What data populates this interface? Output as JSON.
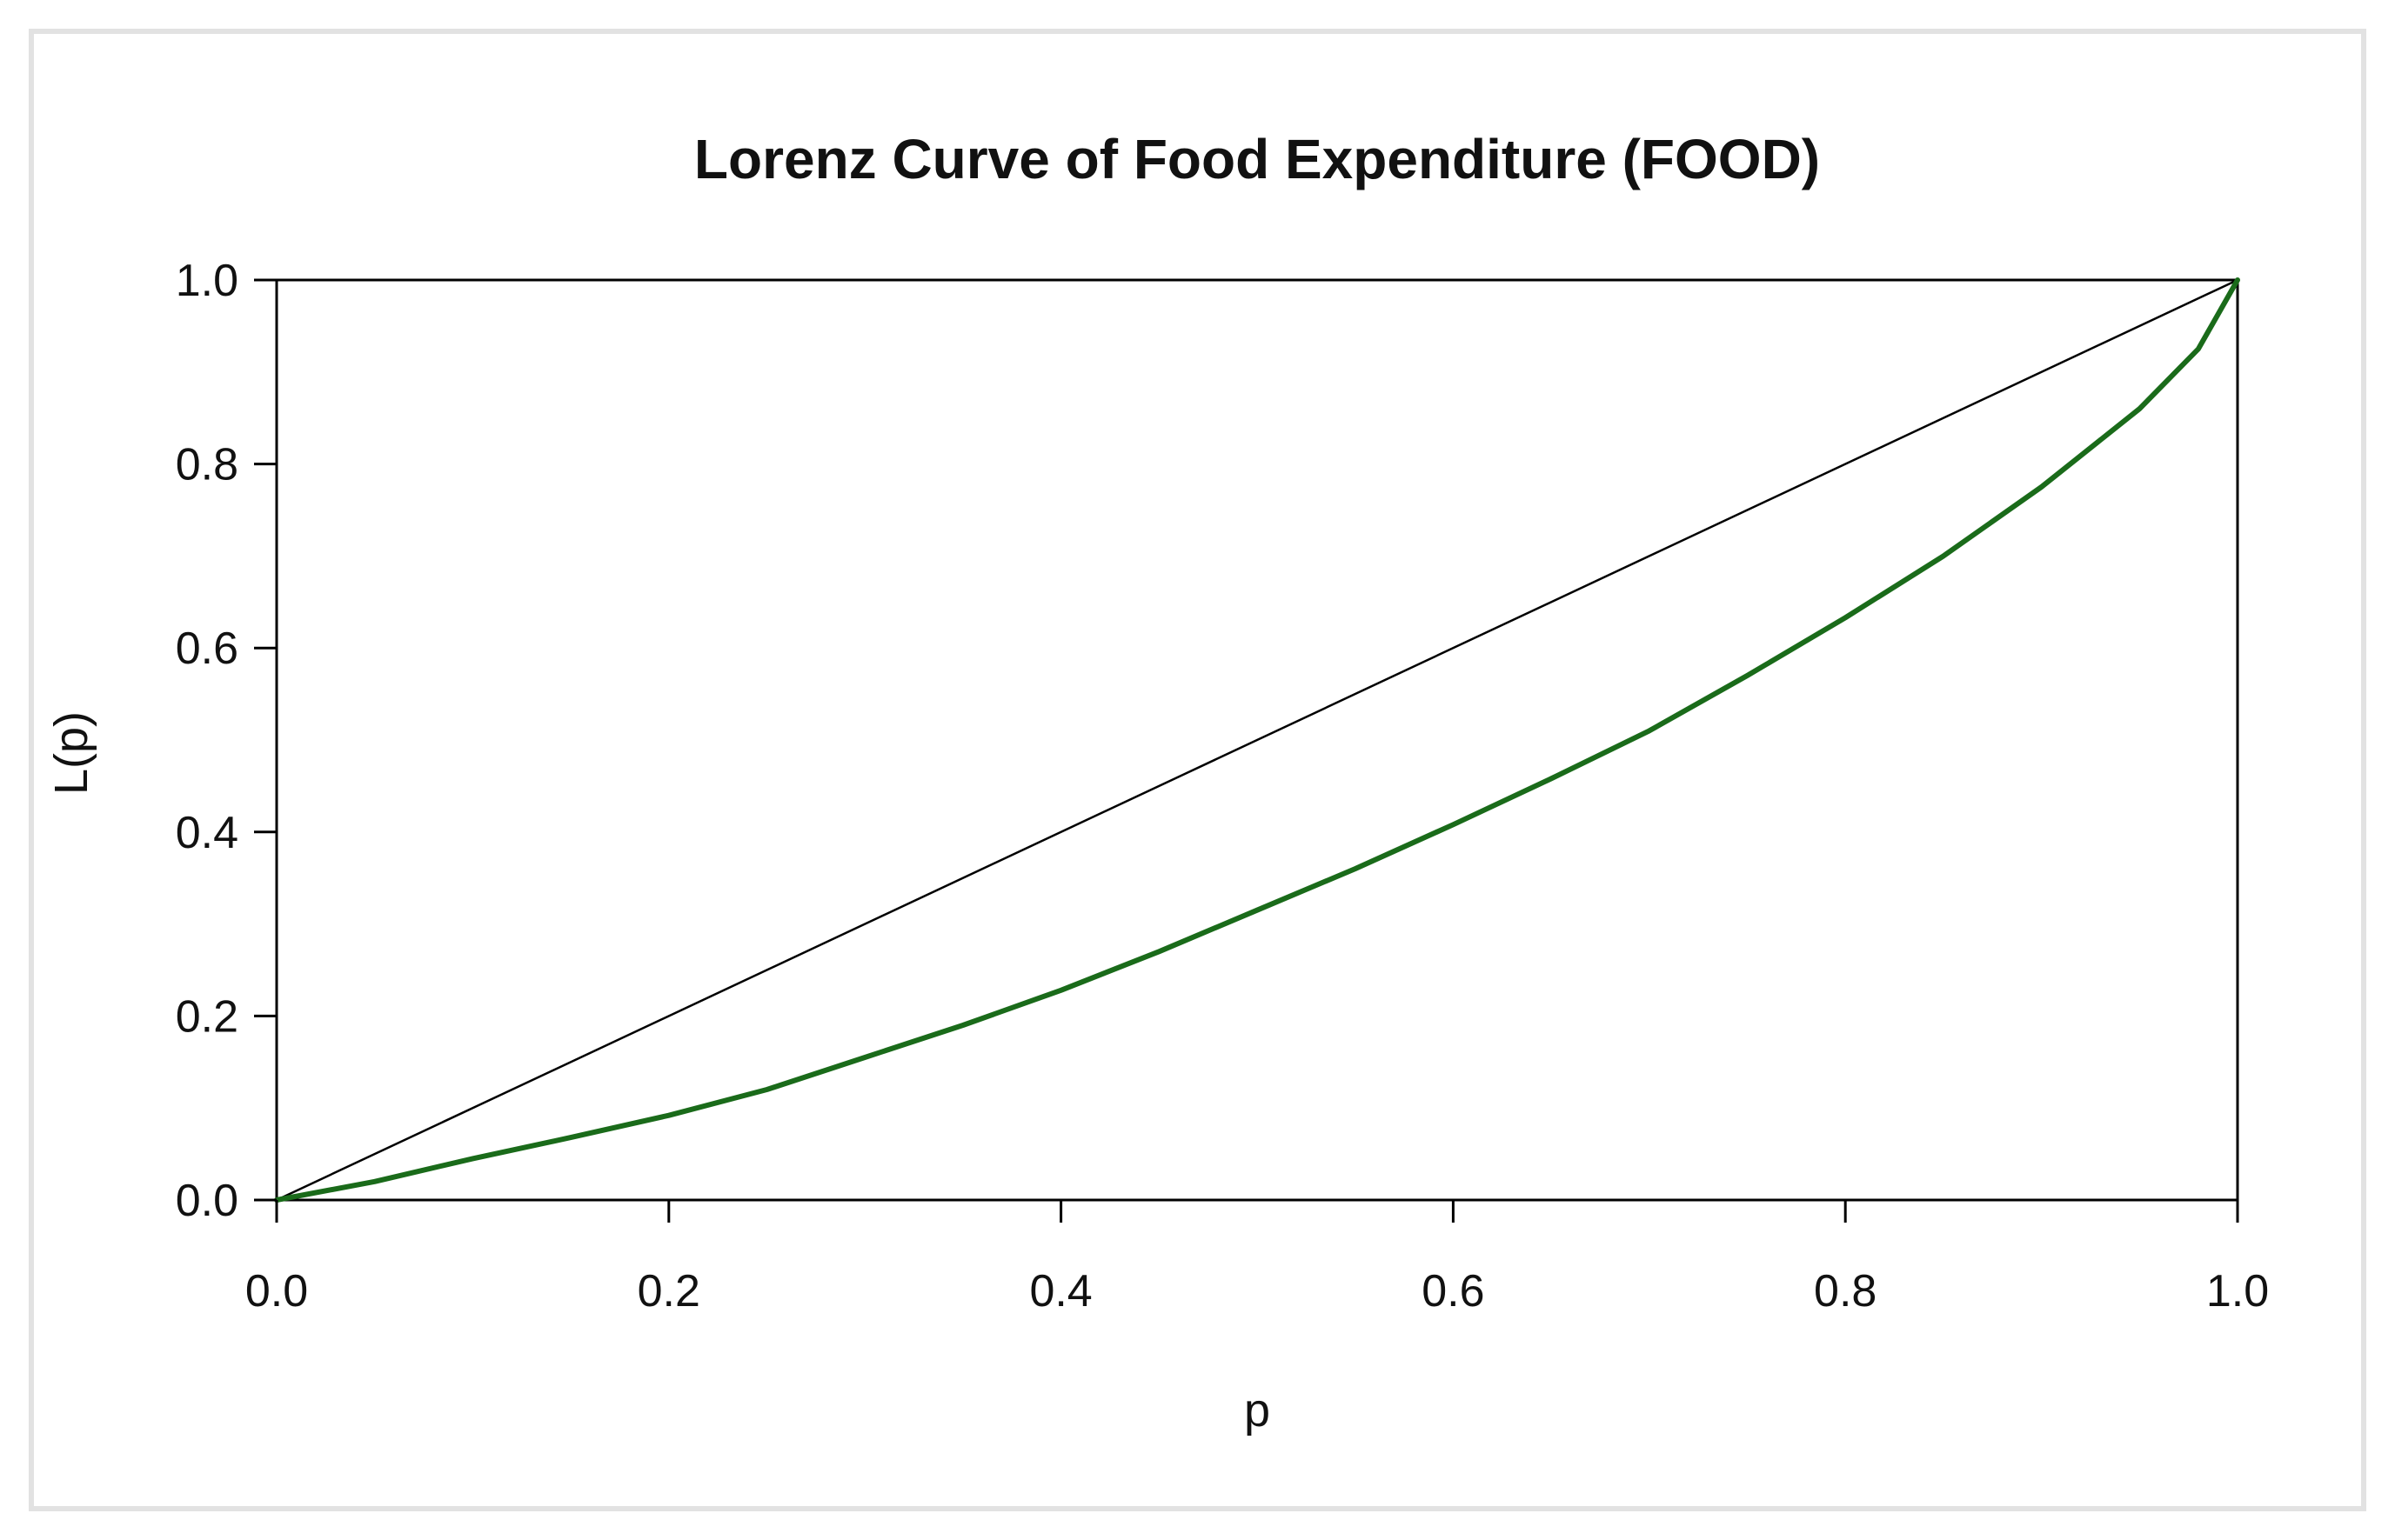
{
  "chart_data": {
    "type": "line",
    "title": "Lorenz Curve of Food Expenditure (FOOD)",
    "xlabel": "p",
    "ylabel": "L(p)",
    "xlim": [
      0,
      1
    ],
    "ylim": [
      0,
      1
    ],
    "x_ticks": [
      "0.0",
      "0.2",
      "0.4",
      "0.6",
      "0.8",
      "1.0"
    ],
    "y_ticks": [
      "0.0",
      "0.2",
      "0.4",
      "0.6",
      "0.8",
      "1.0"
    ],
    "grid": false,
    "legend": "none",
    "series": [
      {
        "color": "#000000",
        "points": [
          [
            0.0,
            0.0
          ],
          [
            1.0,
            1.0
          ]
        ]
      },
      {
        "color": "#1a6b1a",
        "points": [
          [
            0.0,
            0.0
          ],
          [
            0.05,
            0.02
          ],
          [
            0.1,
            0.045
          ],
          [
            0.15,
            0.068
          ],
          [
            0.2,
            0.092
          ],
          [
            0.25,
            0.12
          ],
          [
            0.3,
            0.155
          ],
          [
            0.35,
            0.19
          ],
          [
            0.4,
            0.228
          ],
          [
            0.45,
            0.27
          ],
          [
            0.5,
            0.315
          ],
          [
            0.55,
            0.36
          ],
          [
            0.6,
            0.408
          ],
          [
            0.65,
            0.458
          ],
          [
            0.7,
            0.51
          ],
          [
            0.75,
            0.57
          ],
          [
            0.8,
            0.633
          ],
          [
            0.85,
            0.7
          ],
          [
            0.9,
            0.775
          ],
          [
            0.95,
            0.86
          ],
          [
            0.98,
            0.925
          ],
          [
            1.0,
            1.0
          ]
        ]
      }
    ]
  }
}
